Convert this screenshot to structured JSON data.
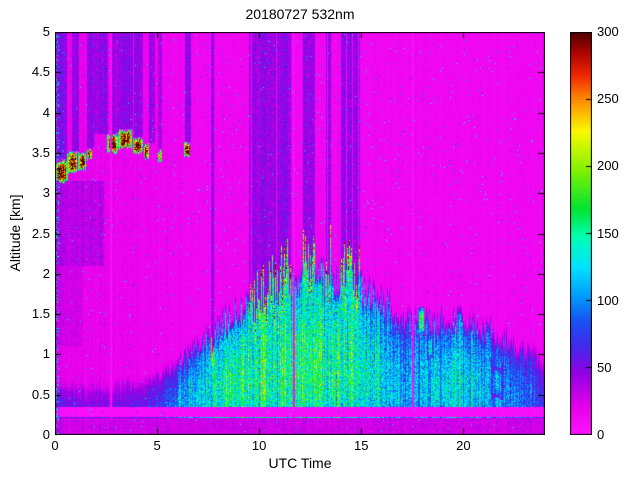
{
  "chart_data": {
    "type": "heatmap",
    "title": "20180727 532nm",
    "xlabel": "UTC Time",
    "ylabel": "Altitude [km]",
    "x_range": [
      0,
      24
    ],
    "y_range": [
      0,
      5
    ],
    "x_ticks": [
      0,
      5,
      10,
      15,
      20
    ],
    "y_ticks": [
      0,
      0.5,
      1,
      1.5,
      2,
      2.5,
      3,
      3.5,
      4,
      4.5,
      5
    ],
    "colorbar": {
      "min": 0,
      "max": 300,
      "ticks": [
        0,
        50,
        100,
        150,
        200,
        250,
        300
      ],
      "stops": [
        [
          0,
          "#FF14FF"
        ],
        [
          20,
          "#E600EA"
        ],
        [
          45,
          "#9400E4"
        ],
        [
          65,
          "#4428EC"
        ],
        [
          85,
          "#1854F2"
        ],
        [
          105,
          "#00A2FF"
        ],
        [
          125,
          "#00E4FF"
        ],
        [
          148,
          "#00FFB2"
        ],
        [
          168,
          "#00E432"
        ],
        [
          198,
          "#86F200"
        ],
        [
          226,
          "#FAFA00"
        ],
        [
          250,
          "#FF8A00"
        ],
        [
          268,
          "#F02800"
        ],
        [
          285,
          "#AA0400"
        ],
        [
          300,
          "#520000"
        ]
      ]
    },
    "field": {
      "hours": [
        0,
        1,
        2,
        3,
        4,
        5,
        6,
        7,
        8,
        9,
        10,
        11,
        12,
        13,
        14,
        15,
        16,
        17,
        18,
        19,
        20,
        21,
        22,
        23,
        24
      ],
      "bl_top_km": [
        0.5,
        0.5,
        0.5,
        0.52,
        0.55,
        0.62,
        0.78,
        1.0,
        1.25,
        1.45,
        1.6,
        1.72,
        1.8,
        1.85,
        1.8,
        1.72,
        1.55,
        1.35,
        1.28,
        1.3,
        1.3,
        1.25,
        1.1,
        0.95,
        0.85
      ],
      "bl_peak": [
        62,
        58,
        56,
        56,
        60,
        70,
        92,
        112,
        126,
        132,
        135,
        137,
        138,
        137,
        134,
        129,
        112,
        95,
        98,
        110,
        114,
        106,
        90,
        74,
        66
      ],
      "background_left": 20,
      "background_right": 13,
      "surface_line": {
        "z0": 0.225,
        "z1": 0.345,
        "value": 4
      },
      "sub_surface": {
        "z_top": 0.205,
        "value": 28
      }
    },
    "clouds": [
      [
        0.05,
        0.6,
        3.14,
        3.4,
        300,
        false
      ],
      [
        0.62,
        1.08,
        3.26,
        3.5,
        300,
        false
      ],
      [
        1.15,
        1.52,
        3.3,
        3.5,
        295,
        false
      ],
      [
        1.6,
        1.8,
        3.42,
        3.54,
        280,
        false
      ],
      [
        2.55,
        3.08,
        3.5,
        3.72,
        300,
        true
      ],
      [
        3.12,
        3.78,
        3.56,
        3.78,
        300,
        true
      ],
      [
        3.85,
        4.28,
        3.5,
        3.68,
        300,
        true
      ],
      [
        4.35,
        4.58,
        3.44,
        3.6,
        290,
        false
      ],
      [
        5.05,
        5.22,
        3.4,
        3.52,
        270,
        false
      ],
      [
        6.35,
        6.62,
        3.44,
        3.62,
        295,
        false
      ],
      [
        17.8,
        18.08,
        1.25,
        1.58,
        165,
        false
      ],
      [
        18.25,
        18.5,
        0.95,
        1.25,
        125,
        false
      ],
      [
        21.35,
        21.95,
        0.45,
        0.85,
        112,
        false
      ]
    ],
    "cumulus": {
      "t0": 7.55,
      "t1": 16.05,
      "env_t": [
        7.5,
        8.0,
        8.5,
        9.0,
        9.5,
        10.0,
        10.5,
        11.0,
        11.5,
        12.0,
        12.5,
        13.0,
        13.5,
        14.0,
        14.5,
        15.0,
        15.5,
        16.1
      ],
      "env_z": [
        1.05,
        1.2,
        1.35,
        1.5,
        1.62,
        1.72,
        1.85,
        1.95,
        2.05,
        2.1,
        2.15,
        2.18,
        2.15,
        2.1,
        2.02,
        1.97,
        1.92,
        1.85
      ],
      "cap_v": [
        215,
        300
      ],
      "att_v": 40
    },
    "stripes": [
      [
        0.35,
        0.5,
        3.42,
        5.02,
        48
      ],
      [
        1.0,
        0.35,
        3.52,
        5.02,
        44
      ],
      [
        1.75,
        0.35,
        3.56,
        5.02,
        46
      ],
      [
        2.2,
        0.8,
        3.74,
        5.02,
        44
      ],
      [
        3.0,
        0.45,
        3.74,
        5.02,
        42
      ],
      [
        3.5,
        0.6,
        3.8,
        5.02,
        46
      ],
      [
        4.1,
        0.45,
        3.7,
        5.02,
        44
      ],
      [
        4.75,
        0.3,
        3.62,
        5.02,
        42
      ],
      [
        5.15,
        0.2,
        3.54,
        5.02,
        40
      ],
      [
        6.5,
        0.3,
        3.64,
        5.02,
        46
      ]
    ],
    "gaps": [
      [
        2.72,
        0.1,
        0.0,
        5.0
      ],
      [
        7.62,
        0.08,
        0.95,
        5.0
      ],
      [
        11.72,
        0.09,
        0.0,
        5.0
      ],
      [
        17.52,
        0.1,
        0.0,
        5.0
      ]
    ]
  }
}
